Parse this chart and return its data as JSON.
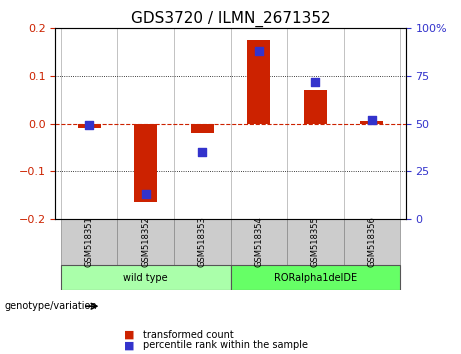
{
  "title": "GDS3720 / ILMN_2671352",
  "samples": [
    "GSM518351",
    "GSM518352",
    "GSM518353",
    "GSM518354",
    "GSM518355",
    "GSM518356"
  ],
  "transformed_count": [
    -0.01,
    -0.165,
    -0.02,
    0.175,
    0.07,
    0.005
  ],
  "percentile_rank": [
    49,
    13,
    35,
    88,
    72,
    52
  ],
  "ylim_left": [
    -0.2,
    0.2
  ],
  "ylim_right": [
    0,
    100
  ],
  "yticks_left": [
    -0.2,
    -0.1,
    0.0,
    0.1,
    0.2
  ],
  "yticks_right": [
    0,
    25,
    50,
    75,
    100
  ],
  "ytick_labels_right": [
    "0",
    "25",
    "50",
    "75",
    "100%"
  ],
  "bar_color": "#cc2200",
  "scatter_color": "#3333cc",
  "hline_color": "#cc2200",
  "grid_color": "#000000",
  "groups": [
    {
      "label": "wild type",
      "indices": [
        0,
        1,
        2
      ],
      "color": "#aaffaa"
    },
    {
      "label": "RORalpha1delDE",
      "indices": [
        3,
        4,
        5
      ],
      "color": "#66ff66"
    }
  ],
  "group_label_prefix": "genotype/variation",
  "legend": [
    {
      "label": "transformed count",
      "color": "#cc2200"
    },
    {
      "label": "percentile rank within the sample",
      "color": "#3333cc"
    }
  ],
  "bar_width": 0.4,
  "scatter_size": 30,
  "tick_label_fontsize": 7,
  "title_fontsize": 11,
  "axis_label_color_left": "#cc2200",
  "axis_label_color_right": "#3333cc"
}
